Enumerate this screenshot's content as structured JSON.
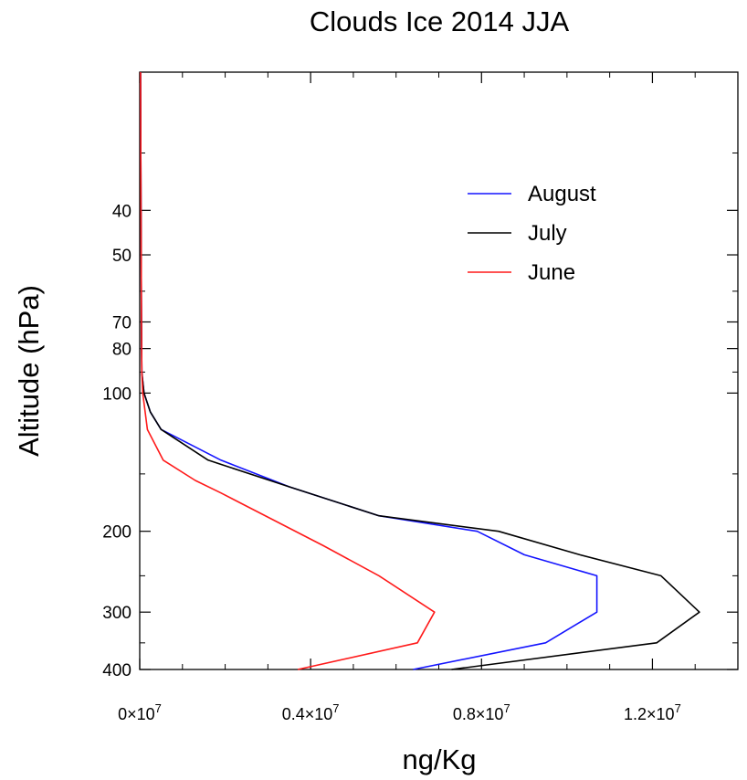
{
  "chart_data": {
    "type": "line",
    "title": "Clouds Ice 2014 JJA",
    "xlabel": "ng/Kg",
    "ylabel": "Altitude (hPa)",
    "xlim": [
      0,
      14000000
    ],
    "ylim": [
      400,
      20
    ],
    "y_scale": "log",
    "y_inverted": true,
    "grid": false,
    "legend_position": "top-right",
    "x_ticks": [
      {
        "value": 0,
        "mantissa": "0",
        "exp": "7"
      },
      {
        "value": 4000000,
        "mantissa": "0.4",
        "exp": "7"
      },
      {
        "value": 8000000,
        "mantissa": "0.8",
        "exp": "7"
      },
      {
        "value": 12000000,
        "mantissa": "1.2",
        "exp": "7"
      }
    ],
    "y_ticks": [
      40,
      50,
      70,
      80,
      100,
      200,
      300,
      400
    ],
    "y_minor": [
      20,
      30,
      60,
      90,
      150,
      250,
      350
    ],
    "series": [
      {
        "name": "August",
        "color": "#1414ff",
        "points": [
          [
            20000,
            20
          ],
          [
            30000,
            40
          ],
          [
            40000,
            70
          ],
          [
            50000,
            90
          ],
          [
            100000,
            100
          ],
          [
            250000,
            110
          ],
          [
            500000,
            120
          ],
          [
            1900000,
            140
          ],
          [
            3500000,
            160
          ],
          [
            5600000,
            185
          ],
          [
            7900000,
            200
          ],
          [
            9000000,
            225
          ],
          [
            10700000,
            250
          ],
          [
            10700000,
            300
          ],
          [
            9500000,
            350
          ],
          [
            6400000,
            400
          ]
        ]
      },
      {
        "name": "July",
        "color": "#000000",
        "points": [
          [
            20000,
            20
          ],
          [
            30000,
            40
          ],
          [
            40000,
            70
          ],
          [
            50000,
            90
          ],
          [
            100000,
            100
          ],
          [
            250000,
            110
          ],
          [
            500000,
            120
          ],
          [
            1600000,
            140
          ],
          [
            3500000,
            160
          ],
          [
            5600000,
            185
          ],
          [
            8400000,
            200
          ],
          [
            10300000,
            225
          ],
          [
            12200000,
            250
          ],
          [
            13100000,
            300
          ],
          [
            12100000,
            350
          ],
          [
            7300000,
            400
          ]
        ]
      },
      {
        "name": "June",
        "color": "#ff1a1a",
        "points": [
          [
            20000,
            20
          ],
          [
            30000,
            40
          ],
          [
            40000,
            70
          ],
          [
            50000,
            90
          ],
          [
            70000,
            100
          ],
          [
            180000,
            120
          ],
          [
            550000,
            140
          ],
          [
            1300000,
            155
          ],
          [
            1900000,
            165
          ],
          [
            4300000,
            215
          ],
          [
            5600000,
            250
          ],
          [
            6900000,
            300
          ],
          [
            6500000,
            350
          ],
          [
            3700000,
            400
          ]
        ]
      }
    ]
  }
}
